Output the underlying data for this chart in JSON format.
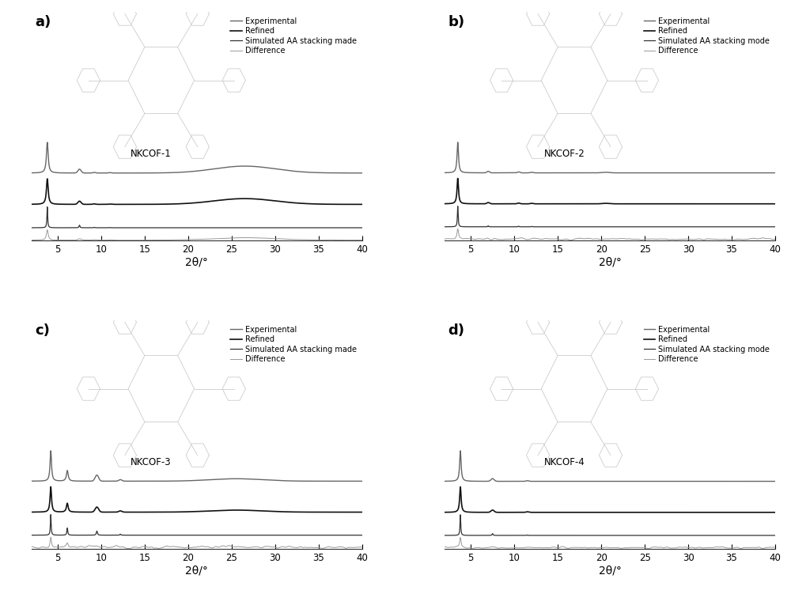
{
  "panels": [
    "a)",
    "b)",
    "c)",
    "d)"
  ],
  "cof_labels": [
    "NKCOF-1",
    "NKCOF-2",
    "NKCOF-3",
    "NKCOF-4"
  ],
  "legend_entries": [
    [
      "Experimental",
      "Refined",
      "Simulated AA stacking made",
      "Difference"
    ],
    [
      "Experimental",
      "Refined",
      "Simulated AA stacking mode",
      "Difference"
    ],
    [
      "Experimental",
      "Refined",
      "Simulated AA stacking made",
      "Difference"
    ],
    [
      "Experimental",
      "Refined",
      "Simulated AA stacking mode",
      "Difference"
    ]
  ],
  "xlabel": "2θ/°",
  "xlim": [
    2,
    40
  ],
  "xticks": [
    5,
    10,
    15,
    20,
    25,
    30,
    35,
    40
  ],
  "background_color": "#ffffff",
  "line_colors": {
    "experimental": "#666666",
    "refined": "#111111",
    "simulated": "#333333",
    "difference": "#999999"
  },
  "line_widths": {
    "experimental": 1.0,
    "refined": 1.2,
    "simulated": 0.9,
    "difference": 0.7
  },
  "panels_ab_xlim": [
    2,
    40
  ],
  "panels_cd_xlim": [
    2,
    40
  ]
}
